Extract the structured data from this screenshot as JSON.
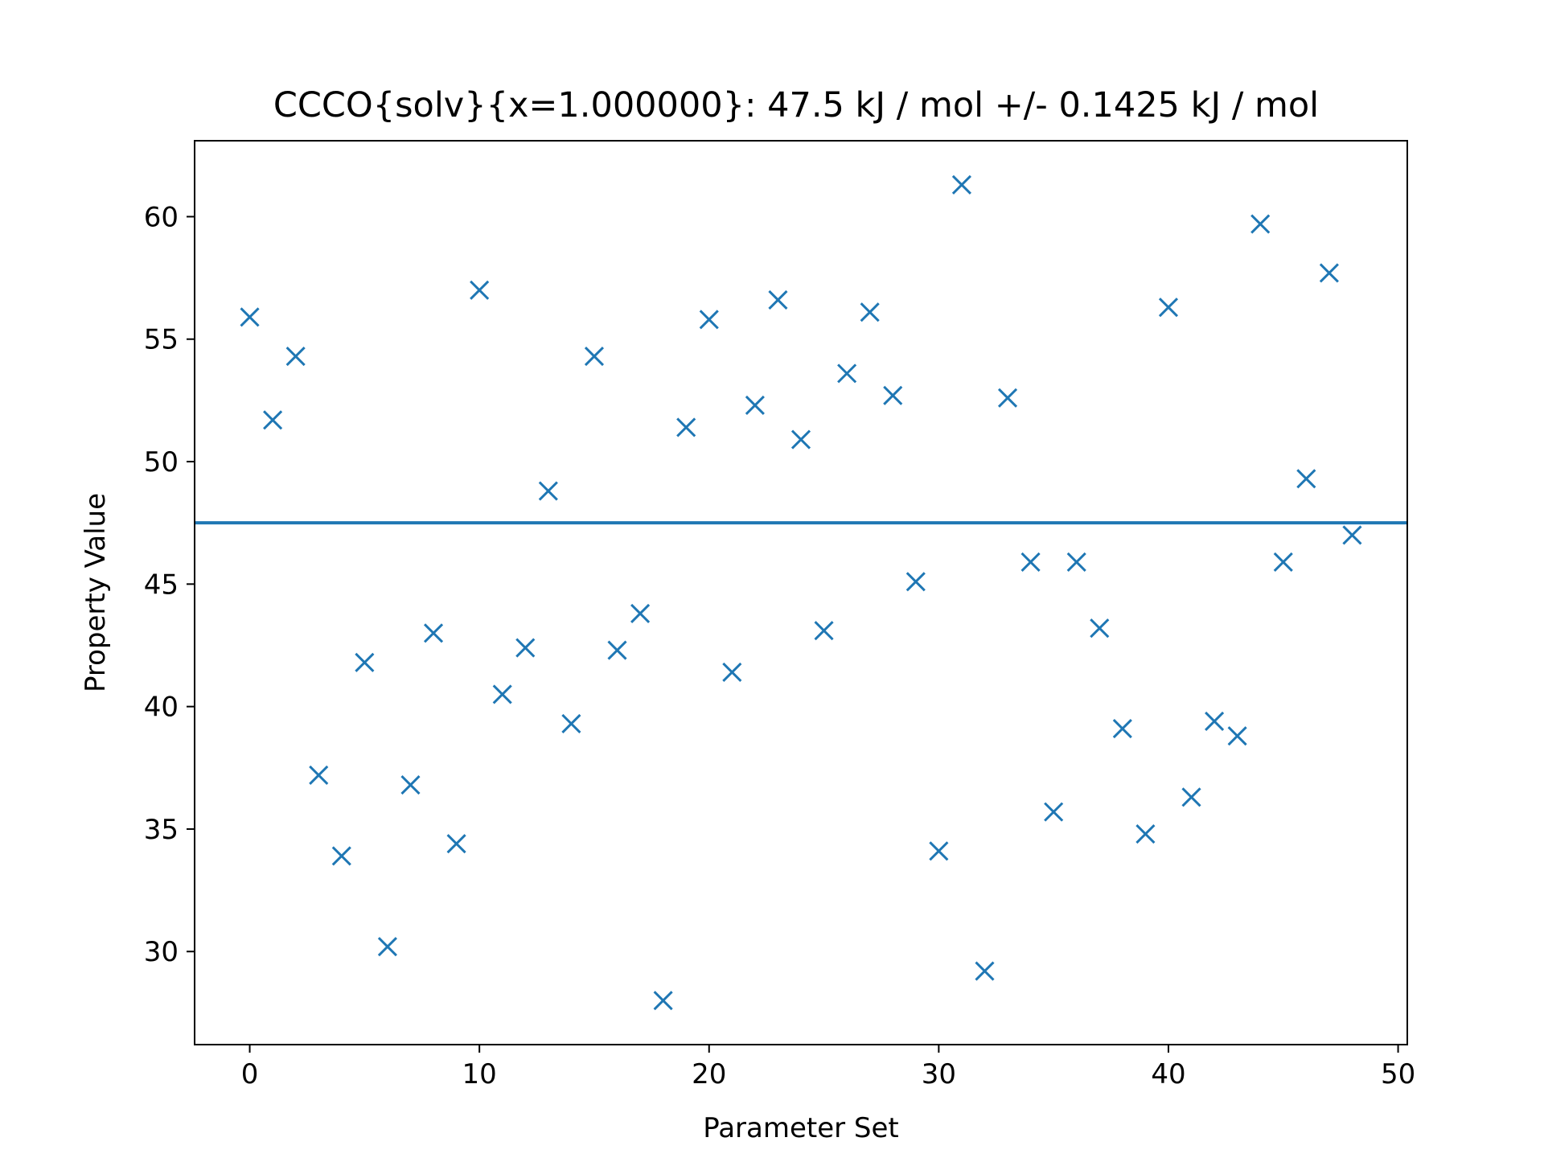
{
  "chart_data": {
    "type": "scatter",
    "title": "CCCO{solv}{x=1.000000}: 47.5 kJ / mol +/- 0.1425 kJ / mol",
    "xlabel": "Parameter Set",
    "ylabel": "Property Value",
    "xlim": [
      -2.4,
      50.4
    ],
    "ylim": [
      26.2,
      63.1
    ],
    "xticks": [
      0,
      10,
      20,
      30,
      40,
      50
    ],
    "yticks": [
      30,
      35,
      40,
      45,
      50,
      55,
      60
    ],
    "marker": "x",
    "color": "#1f77b4",
    "reference_line": {
      "y": 47.5
    },
    "x": [
      0,
      1,
      2,
      3,
      4,
      5,
      6,
      7,
      8,
      9,
      10,
      11,
      12,
      13,
      14,
      15,
      16,
      17,
      18,
      19,
      20,
      21,
      22,
      23,
      24,
      25,
      26,
      27,
      28,
      29,
      30,
      31,
      32,
      33,
      34,
      35,
      36,
      37,
      38,
      39,
      40,
      41,
      42,
      43,
      44,
      45,
      46,
      47,
      48
    ],
    "y": [
      55.9,
      51.7,
      54.3,
      37.2,
      33.9,
      41.8,
      30.2,
      36.8,
      43.0,
      34.4,
      57.0,
      40.5,
      42.4,
      48.8,
      39.3,
      54.3,
      42.3,
      43.8,
      28.0,
      51.4,
      55.8,
      41.4,
      52.3,
      56.6,
      50.9,
      43.1,
      53.6,
      56.1,
      52.7,
      45.1,
      34.1,
      61.3,
      29.2,
      52.6,
      45.9,
      35.7,
      45.9,
      43.2,
      39.1,
      34.8,
      56.3,
      36.3,
      39.4,
      38.8,
      59.7,
      45.9,
      49.3,
      57.7,
      47.0
    ]
  }
}
